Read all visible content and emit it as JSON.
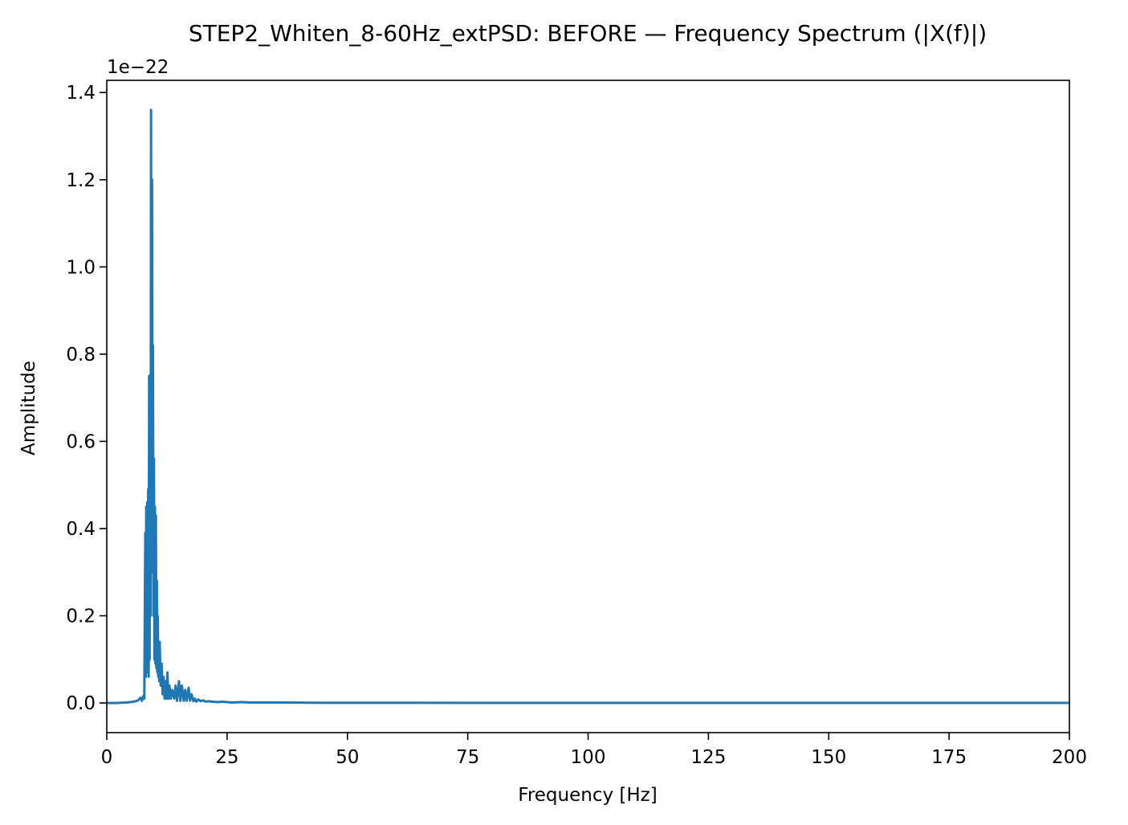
{
  "chart_data": {
    "type": "line",
    "title": "STEP2_Whiten_8-60Hz_extPSD: BEFORE — Frequency Spectrum (|X(f)|)",
    "xlabel": "Frequency [Hz]",
    "ylabel": "Amplitude",
    "y_offset_text": "1e−22",
    "xlim": [
      0,
      200
    ],
    "ylim": [
      -0.068,
      1.428
    ],
    "y_scale_note": "values shown in units of 1e-22",
    "x_ticks": [
      0,
      25,
      50,
      75,
      100,
      125,
      150,
      175,
      200
    ],
    "x_tick_labels": [
      "0",
      "25",
      "50",
      "75",
      "100",
      "125",
      "150",
      "175",
      "200"
    ],
    "y_ticks": [
      0.0,
      0.2,
      0.4,
      0.6,
      0.8,
      1.0,
      1.2,
      1.4
    ],
    "y_tick_labels": [
      "0.0",
      "0.2",
      "0.4",
      "0.6",
      "0.8",
      "1.0",
      "1.2",
      "1.4"
    ],
    "grid": false,
    "legend": "none",
    "series": [
      {
        "color": "#1f77b4",
        "x": [
          0,
          2,
          4,
          5,
          6,
          6.5,
          7,
          7.3,
          7.6,
          7.8,
          8.0,
          8.1,
          8.2,
          8.3,
          8.4,
          8.5,
          8.6,
          8.7,
          8.8,
          8.9,
          9.0,
          9.1,
          9.2,
          9.3,
          9.4,
          9.5,
          9.6,
          9.7,
          9.8,
          9.9,
          10.0,
          10.1,
          10.2,
          10.3,
          10.4,
          10.5,
          10.6,
          10.7,
          10.8,
          10.9,
          11.0,
          11.2,
          11.4,
          11.6,
          11.8,
          12.0,
          12.2,
          12.4,
          12.6,
          12.8,
          13.0,
          13.3,
          13.6,
          14.0,
          14.3,
          14.6,
          15.0,
          15.3,
          15.6,
          16.0,
          16.3,
          16.6,
          17.0,
          17.3,
          17.6,
          18.0,
          18.3,
          18.6,
          19.0,
          19.5,
          20.0,
          20.5,
          21.0,
          22.0,
          23.0,
          24.0,
          25.0,
          26.0,
          28.0,
          30.0,
          32.0,
          35.0,
          40.0,
          45.0,
          50.0,
          60.0,
          80.0,
          100.0,
          125.0,
          150.0,
          175.0,
          200.0
        ],
        "y": [
          0.0,
          0.0,
          0.001,
          0.002,
          0.004,
          0.006,
          0.012,
          0.005,
          0.016,
          0.01,
          0.39,
          0.06,
          0.45,
          0.08,
          0.46,
          0.07,
          0.49,
          0.06,
          0.75,
          0.1,
          0.73,
          0.2,
          1.36,
          0.3,
          1.2,
          0.5,
          0.82,
          0.2,
          0.56,
          0.1,
          0.45,
          0.09,
          0.43,
          0.08,
          0.28,
          0.07,
          0.2,
          0.06,
          0.13,
          0.05,
          0.14,
          0.04,
          0.09,
          0.02,
          0.06,
          0.01,
          0.05,
          0.01,
          0.07,
          0.01,
          0.04,
          0.01,
          0.03,
          0.01,
          0.04,
          0.005,
          0.05,
          0.005,
          0.04,
          0.005,
          0.03,
          0.005,
          0.035,
          0.005,
          0.02,
          0.004,
          0.01,
          0.003,
          0.008,
          0.004,
          0.006,
          0.003,
          0.004,
          0.003,
          0.002,
          0.003,
          0.002,
          0.001,
          0.002,
          0.001,
          0.001,
          0.001,
          0.0008,
          0.0005,
          0.0004,
          0.0003,
          0.0002,
          0.0001,
          0.0001,
          0.0001,
          0.0001,
          0.0001
        ]
      }
    ]
  }
}
